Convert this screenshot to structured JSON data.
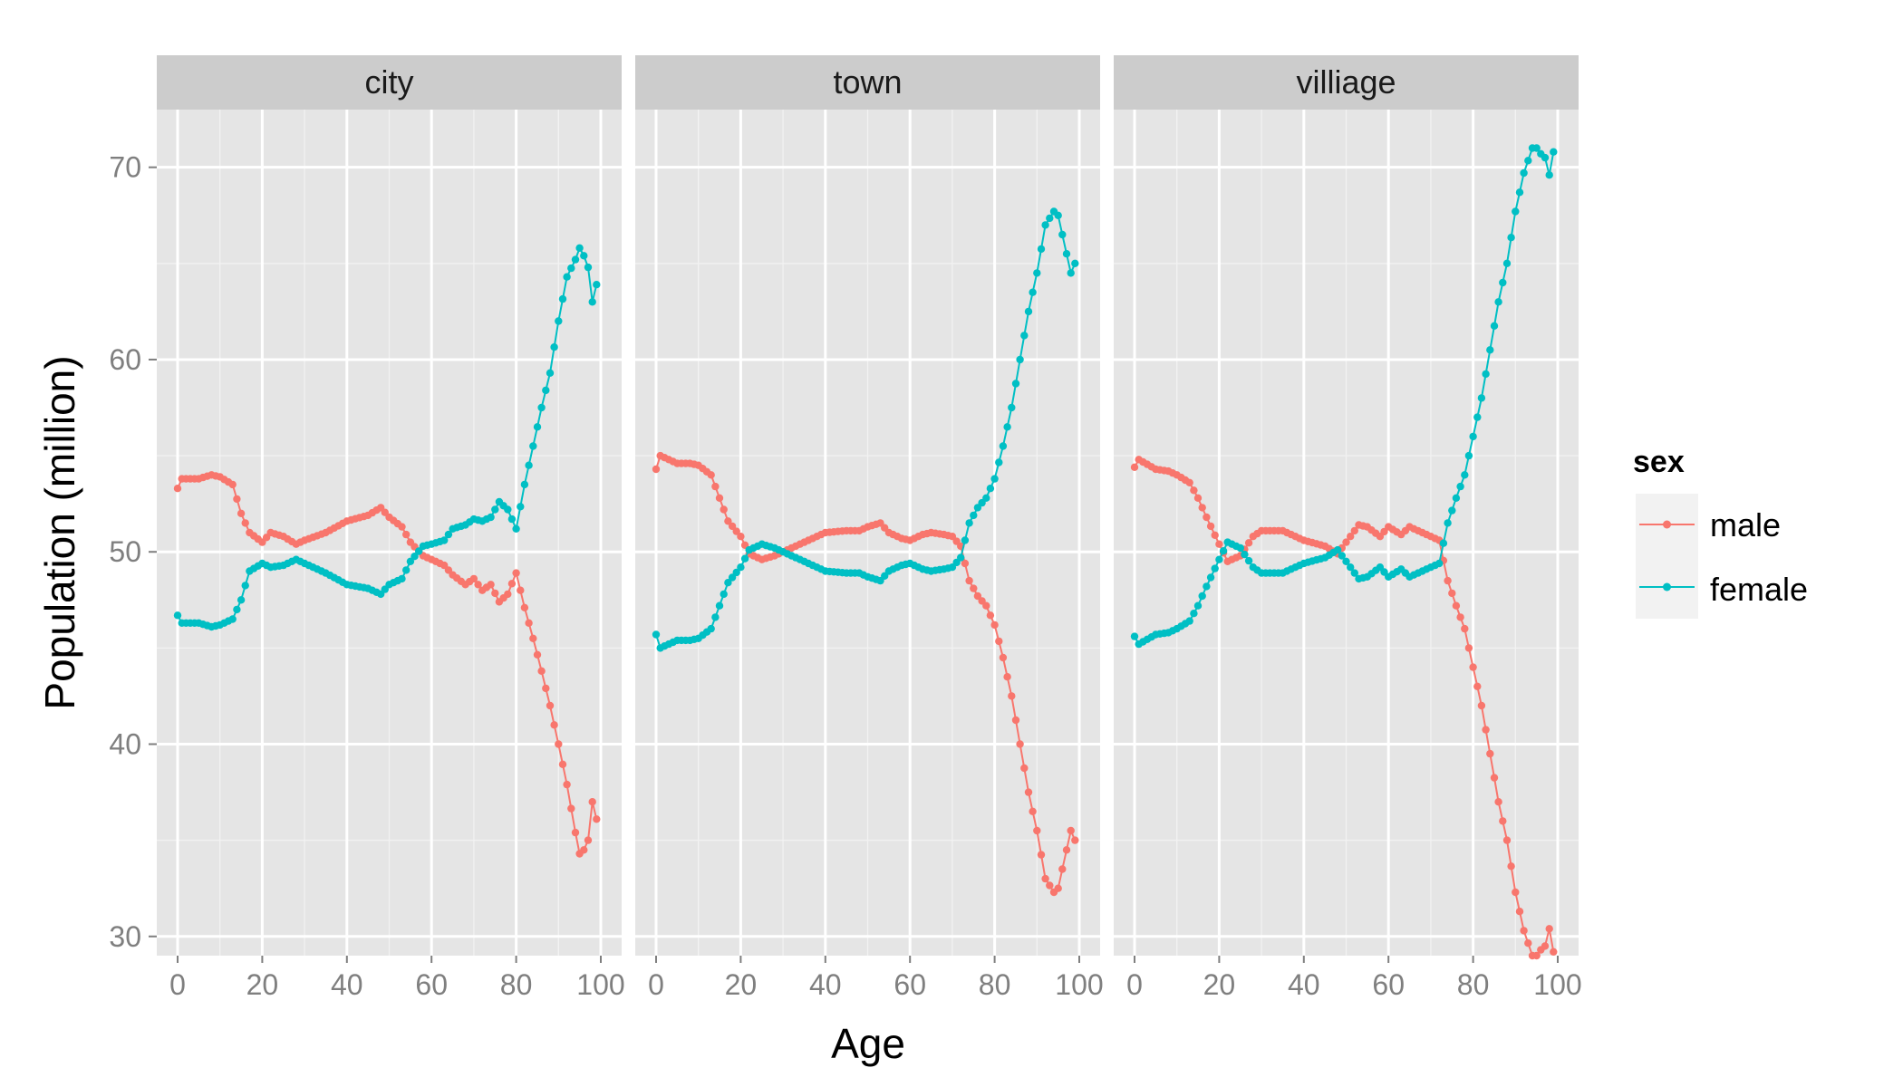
{
  "chart_data": {
    "type": "line",
    "facet_by": "location",
    "xlabel": "Age",
    "ylabel": "Population (million)",
    "xlim": [
      0,
      100
    ],
    "ylim": [
      29,
      73
    ],
    "x_ticks": [
      0,
      20,
      40,
      60,
      80,
      100
    ],
    "x_tick_labels": [
      "0",
      "20",
      "40",
      "60",
      "80",
      "100"
    ],
    "y_ticks": [
      30,
      40,
      50,
      60,
      70
    ],
    "y_tick_labels": [
      "30",
      "40",
      "50",
      "60",
      "70"
    ],
    "grid": true,
    "legend": {
      "title": "sex",
      "position": "right",
      "entries": [
        {
          "name": "male",
          "color": "#F8766D"
        },
        {
          "name": "female",
          "color": "#00BFC4"
        }
      ]
    },
    "x_knots": [
      0,
      1,
      5,
      8,
      10,
      13,
      15,
      17,
      20,
      22,
      25,
      28,
      30,
      35,
      40,
      45,
      48,
      50,
      53,
      55,
      58,
      60,
      63,
      65,
      68,
      70,
      72,
      74,
      76,
      78,
      80,
      82,
      84,
      86,
      88,
      90,
      92,
      94,
      95,
      96,
      97,
      98,
      99
    ],
    "panels": [
      {
        "label": "city",
        "series": [
          {
            "name": "male",
            "values": [
              53.3,
              53.8,
              53.8,
              54.0,
              53.9,
              53.5,
              52.0,
              51.0,
              50.5,
              51.0,
              50.8,
              50.4,
              50.6,
              51.0,
              51.6,
              51.9,
              52.3,
              51.8,
              51.3,
              50.5,
              49.8,
              49.6,
              49.3,
              48.8,
              48.3,
              48.6,
              48.0,
              48.3,
              47.4,
              47.8,
              48.9,
              47.1,
              45.5,
              43.8,
              42.0,
              40.0,
              37.9,
              35.4,
              34.3,
              34.5,
              35.0,
              37.0,
              36.1
            ]
          },
          {
            "name": "female",
            "values": [
              46.7,
              46.3,
              46.3,
              46.1,
              46.2,
              46.5,
              47.5,
              49.0,
              49.4,
              49.2,
              49.3,
              49.6,
              49.4,
              48.9,
              48.3,
              48.1,
              47.8,
              48.3,
              48.6,
              49.5,
              50.3,
              50.4,
              50.6,
              51.2,
              51.4,
              51.7,
              51.6,
              51.8,
              52.6,
              52.2,
              51.2,
              53.5,
              55.5,
              57.5,
              59.3,
              62.0,
              64.3,
              65.2,
              65.8,
              65.4,
              64.8,
              63.0,
              63.9
            ]
          }
        ]
      },
      {
        "label": "town",
        "series": [
          {
            "name": "male",
            "values": [
              54.3,
              55.0,
              54.6,
              54.6,
              54.5,
              54.0,
              52.8,
              51.6,
              50.8,
              49.9,
              49.6,
              49.8,
              50.0,
              50.5,
              51.0,
              51.1,
              51.1,
              51.3,
              51.5,
              51.0,
              50.7,
              50.6,
              50.9,
              51.0,
              50.9,
              50.8,
              50.3,
              48.5,
              47.7,
              47.2,
              46.2,
              44.5,
              42.5,
              40.0,
              37.5,
              35.5,
              33.0,
              32.3,
              32.5,
              33.5,
              34.5,
              35.5,
              35.0
            ]
          },
          {
            "name": "female",
            "values": [
              45.7,
              45.0,
              45.4,
              45.4,
              45.5,
              46.0,
              47.2,
              48.4,
              49.2,
              50.1,
              50.4,
              50.2,
              50.0,
              49.5,
              49.0,
              48.9,
              48.9,
              48.7,
              48.5,
              49.0,
              49.3,
              49.4,
              49.1,
              49.0,
              49.1,
              49.2,
              49.7,
              51.5,
              52.3,
              52.8,
              53.8,
              55.5,
              57.5,
              60.0,
              62.5,
              64.5,
              67.0,
              67.7,
              67.5,
              66.5,
              65.5,
              64.5,
              65.0
            ]
          }
        ]
      },
      {
        "label": "villiage",
        "series": [
          {
            "name": "male",
            "values": [
              54.4,
              54.8,
              54.3,
              54.2,
              54.0,
              53.6,
              52.8,
              51.8,
              50.4,
              49.5,
              49.8,
              50.8,
              51.1,
              51.1,
              50.6,
              50.3,
              49.9,
              50.5,
              51.4,
              51.3,
              50.8,
              51.3,
              50.9,
              51.3,
              51.0,
              50.8,
              50.6,
              48.5,
              47.2,
              46.0,
              44.0,
              42.0,
              39.5,
              37.0,
              35.0,
              32.3,
              30.3,
              29.0,
              29.0,
              29.3,
              29.5,
              30.4,
              29.2
            ]
          },
          {
            "name": "female",
            "values": [
              45.6,
              45.2,
              45.7,
              45.8,
              46.0,
              46.4,
              47.2,
              48.2,
              49.6,
              50.5,
              50.2,
              49.2,
              48.9,
              48.9,
              49.4,
              49.7,
              50.1,
              49.5,
              48.6,
              48.7,
              49.2,
              48.7,
              49.1,
              48.7,
              49.0,
              49.2,
              49.4,
              51.5,
              52.8,
              54.0,
              56.0,
              58.0,
              60.5,
              63.0,
              65.0,
              67.7,
              69.7,
              71.0,
              71.0,
              70.7,
              70.5,
              69.6,
              70.8
            ]
          }
        ]
      }
    ]
  }
}
